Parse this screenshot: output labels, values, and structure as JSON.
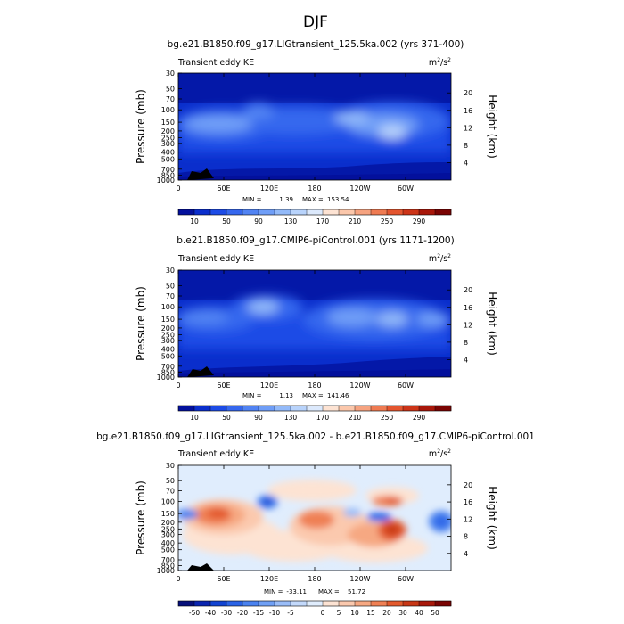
{
  "main_title": "DJF",
  "chart_data": [
    {
      "type": "heatmap",
      "title": "bg.e21.B1850.f09_g17.LIGtransient_125.5ka.002 (yrs 371-400)",
      "left_label": "Transient eddy KE",
      "units": "m",
      "units_sup": "2",
      "units_tail": "/s",
      "units_sup2": "2",
      "ylabel": "Pressure (mb)",
      "y2label": "Height (km)",
      "yticks": [
        "30",
        "50",
        "70",
        "100",
        "150",
        "200",
        "250",
        "300",
        "400",
        "500",
        "700",
        "850",
        "1000"
      ],
      "y2ticks": [
        "20",
        "16",
        "12",
        "8",
        "4"
      ],
      "xticks": [
        "0",
        "60E",
        "120E",
        "180",
        "120W",
        "60W"
      ],
      "min_label": "MIN =",
      "min_value": "1.39",
      "max_label": "MAX =",
      "max_value": "153.54",
      "colorbar_ticks": [
        "10",
        "50",
        "90",
        "130",
        "170",
        "210",
        "250",
        "290"
      ],
      "colorbar_colors": [
        "#03109c",
        "#0a2ecc",
        "#1c4be6",
        "#3567ee",
        "#5183f3",
        "#6f9ef7",
        "#93baf9",
        "#b8d3fb",
        "#dce9fc",
        "#fde3d3",
        "#fbc7ab",
        "#f6a380",
        "#ef7b52",
        "#e4552f",
        "#cc3418",
        "#a8170a",
        "#7a0403"
      ]
    },
    {
      "type": "heatmap",
      "title": "b.e21.B1850.f09_g17.CMIP6-piControl.001 (yrs 1171-1200)",
      "left_label": "Transient eddy KE",
      "units": "m",
      "units_sup": "2",
      "units_tail": "/s",
      "units_sup2": "2",
      "ylabel": "Pressure (mb)",
      "y2label": "Height (km)",
      "yticks": [
        "30",
        "50",
        "70",
        "100",
        "150",
        "200",
        "250",
        "300",
        "400",
        "500",
        "700",
        "850",
        "1000"
      ],
      "y2ticks": [
        "20",
        "16",
        "12",
        "8",
        "4"
      ],
      "xticks": [
        "0",
        "60E",
        "120E",
        "180",
        "120W",
        "60W"
      ],
      "min_label": "MIN =",
      "min_value": "1.13",
      "max_label": "MAX =",
      "max_value": "141.46",
      "colorbar_ticks": [
        "10",
        "50",
        "90",
        "130",
        "170",
        "210",
        "250",
        "290"
      ],
      "colorbar_colors": [
        "#03109c",
        "#0a2ecc",
        "#1c4be6",
        "#3567ee",
        "#5183f3",
        "#6f9ef7",
        "#93baf9",
        "#b8d3fb",
        "#dce9fc",
        "#fde3d3",
        "#fbc7ab",
        "#f6a380",
        "#ef7b52",
        "#e4552f",
        "#cc3418",
        "#a8170a",
        "#7a0403"
      ]
    },
    {
      "type": "heatmap",
      "title": "bg.e21.B1850.f09_g17.LIGtransient_125.5ka.002 - b.e21.B1850.f09_g17.CMIP6-piControl.001",
      "left_label": "Transient eddy KE",
      "units": "m",
      "units_sup": "2",
      "units_tail": "/s",
      "units_sup2": "2",
      "ylabel": "Pressure (mb)",
      "y2label": "Height (km)",
      "yticks": [
        "30",
        "50",
        "70",
        "100",
        "150",
        "200",
        "250",
        "300",
        "400",
        "500",
        "700",
        "850",
        "1000"
      ],
      "y2ticks": [
        "20",
        "16",
        "12",
        "8",
        "4"
      ],
      "xticks": [
        "0",
        "60E",
        "120E",
        "180",
        "120W",
        "60W"
      ],
      "min_label": "MIN =",
      "min_value": "-33.11",
      "max_label": "MAX =",
      "max_value": "51.72",
      "colorbar_ticks": [
        "-50",
        "-40",
        "-30",
        "-20",
        "-15",
        "-10",
        "-5",
        "0",
        "5",
        "10",
        "15",
        "20",
        "30",
        "40",
        "50"
      ],
      "colorbar_colors": [
        "#07107a",
        "#0a25b0",
        "#1244d2",
        "#2a63e6",
        "#4a82f0",
        "#70a0f5",
        "#9abdf8",
        "#c3d9fb",
        "#e0edfd",
        "#fde3d3",
        "#fbc9ae",
        "#f6a882",
        "#ef8054",
        "#e35a2d",
        "#c83716",
        "#a8180a",
        "#7a0403"
      ]
    }
  ]
}
